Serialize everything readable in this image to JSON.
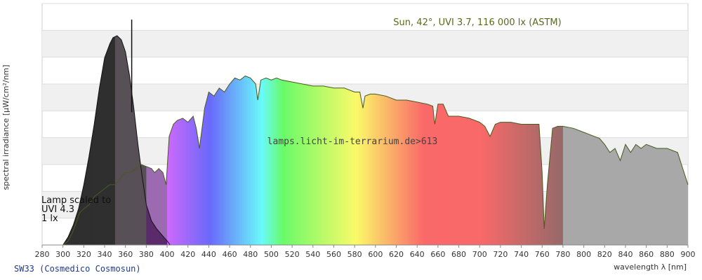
{
  "chart_data": {
    "type": "area",
    "annotation_sun": "Sun, 42°, UVI 3.7, 116 000 lx (ASTM)",
    "watermark": "lamps.licht-im-terrarium.de>613",
    "lamp_label_lines": [
      "Lamp scaled to",
      "UVI 4.3",
      "1 lx"
    ],
    "ylabel": "spectral irradiance [µW/cm²/nm]",
    "xlabel": "wavelength λ [nm]",
    "xlim": [
      280,
      900
    ],
    "ylim": [
      0,
      1
    ],
    "x_ticks": [
      280,
      300,
      320,
      340,
      360,
      380,
      400,
      420,
      440,
      460,
      480,
      500,
      520,
      540,
      560,
      580,
      600,
      620,
      640,
      660,
      680,
      700,
      720,
      740,
      760,
      780,
      800,
      820,
      840,
      860,
      880,
      900
    ],
    "grid": true,
    "series": [
      {
        "type": "line",
        "x": [
          292,
          300,
          305,
          309,
          312,
          316,
          320,
          325,
          330,
          335,
          340,
          345,
          350,
          355,
          360,
          365,
          370,
          375,
          380,
          385,
          388,
          392,
          396,
          399,
          402,
          406,
          410,
          415,
          420,
          425,
          428,
          431,
          436,
          440,
          445,
          450,
          455,
          460,
          465,
          470,
          475,
          480,
          485,
          487,
          490,
          495,
          500,
          505,
          510,
          520,
          530,
          540,
          550,
          560,
          570,
          580,
          585,
          588,
          590,
          595,
          600,
          610,
          620,
          630,
          640,
          650,
          655,
          657,
          660,
          665,
          670,
          680,
          690,
          700,
          705,
          710,
          715,
          720,
          730,
          740,
          750,
          757,
          760,
          762,
          765,
          770,
          775,
          780,
          790,
          800,
          810,
          815,
          820,
          825,
          830,
          835,
          840,
          845,
          850,
          855,
          860,
          870,
          880,
          890,
          900
        ],
        "values": [
          0.0,
          0.0,
          0.02,
          0.06,
          0.1,
          0.16,
          0.18,
          0.2,
          0.24,
          0.26,
          0.28,
          0.3,
          0.3,
          0.33,
          0.36,
          0.36,
          0.38,
          0.4,
          0.39,
          0.38,
          0.36,
          0.38,
          0.36,
          0.3,
          0.54,
          0.6,
          0.62,
          0.63,
          0.61,
          0.64,
          0.58,
          0.48,
          0.68,
          0.76,
          0.74,
          0.78,
          0.76,
          0.8,
          0.83,
          0.82,
          0.84,
          0.83,
          0.8,
          0.72,
          0.82,
          0.83,
          0.82,
          0.83,
          0.82,
          0.81,
          0.8,
          0.79,
          0.79,
          0.78,
          0.78,
          0.76,
          0.76,
          0.68,
          0.74,
          0.75,
          0.75,
          0.74,
          0.72,
          0.72,
          0.71,
          0.7,
          0.69,
          0.6,
          0.7,
          0.7,
          0.64,
          0.64,
          0.63,
          0.61,
          0.59,
          0.54,
          0.6,
          0.61,
          0.61,
          0.6,
          0.6,
          0.6,
          0.36,
          0.08,
          0.3,
          0.58,
          0.59,
          0.59,
          0.58,
          0.56,
          0.54,
          0.53,
          0.5,
          0.46,
          0.48,
          0.42,
          0.5,
          0.46,
          0.5,
          0.48,
          0.5,
          0.48,
          0.48,
          0.46,
          0.3
        ]
      },
      {
        "type": "area",
        "x": [
          292,
          300,
          305,
          310,
          315,
          320,
          325,
          330,
          335,
          340,
          345,
          348,
          352,
          356,
          360,
          364,
          368,
          372,
          376,
          380,
          385,
          390,
          395,
          400,
          403
        ],
        "values": [
          0.0,
          0.0,
          0.04,
          0.1,
          0.18,
          0.3,
          0.44,
          0.6,
          0.78,
          0.93,
          1.0,
          1.03,
          1.04,
          1.02,
          0.96,
          0.84,
          0.68,
          0.5,
          0.34,
          0.2,
          0.12,
          0.08,
          0.05,
          0.02,
          0.0
        ]
      }
    ],
    "colors": {
      "line": "#4a5a1e",
      "lamp_fill": "#575057",
      "band_dark": "#2f2f2f",
      "band_uv": "#5b2a6b",
      "band_ir": "#a8a8a8",
      "grid_band": "#f0f0f0",
      "annotation": "#556b1a",
      "caption": "#203a8a"
    }
  },
  "footer": {
    "caption": "SW33 (Cosmedico Cosmosun)"
  }
}
